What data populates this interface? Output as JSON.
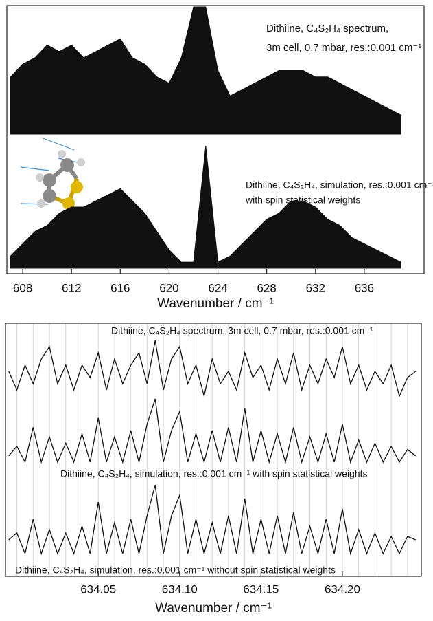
{
  "chart_data": [
    {
      "type": "area",
      "annotations": [
        "Dithiine, C₄S₂H₄ spectrum,",
        "3m cell, 0.7 mbar, res.:0.001 cm⁻¹",
        "Dithiine, C₄S₂H₄, simulation, res.:0.001 cm⁻¹",
        "with spin statistical weights"
      ],
      "xlabel": "Wavenumber / cm⁻¹",
      "x": [
        607,
        608,
        609,
        610,
        611,
        612,
        613,
        614,
        615,
        616,
        617,
        618,
        619,
        620,
        621,
        622,
        623,
        624,
        625,
        626,
        627,
        628,
        629,
        630,
        631,
        632,
        633,
        634,
        635,
        636,
        637,
        638,
        639
      ],
      "series": [
        {
          "color": "#111111",
          "values": [
            0.45,
            0.55,
            0.6,
            0.7,
            0.65,
            0.7,
            0.6,
            0.65,
            0.7,
            0.75,
            0.6,
            0.55,
            0.45,
            0.4,
            0.6,
            1.0,
            1.0,
            0.5,
            0.3,
            0.35,
            0.4,
            0.45,
            0.5,
            0.5,
            0.5,
            0.45,
            0.45,
            0.4,
            0.35,
            0.3,
            0.25,
            0.2,
            0.15
          ]
        },
        {
          "color": "#111111",
          "values": [
            0.1,
            0.2,
            0.3,
            0.35,
            0.45,
            0.5,
            0.5,
            0.55,
            0.6,
            0.65,
            0.55,
            0.45,
            0.3,
            0.15,
            0.05,
            0.05,
            1.0,
            0.05,
            0.1,
            0.2,
            0.3,
            0.4,
            0.45,
            0.55,
            0.55,
            0.5,
            0.4,
            0.35,
            0.25,
            0.2,
            0.15,
            0.1,
            0.05
          ]
        }
      ],
      "xlim": [
        606.7,
        640.9
      ],
      "xticks": [
        608,
        612,
        616,
        620,
        624,
        628,
        632,
        636
      ]
    },
    {
      "type": "line",
      "annotations": [
        "Dithiine, C₄S₂H₄ spectrum, 3m cell, 0.7 mbar, res.:0.001 cm⁻¹",
        "Dithiine, C₄S₂H₄, simulation, res.:0.001 cm⁻¹  with spin statistical weights",
        "Dithiine, C₄S₂H₄, simulation, res.:0.001 cm⁻¹  without spin statistical weights"
      ],
      "xlabel": "Wavenumber / cm⁻¹",
      "x": [
        633.995,
        634,
        634.005,
        634.01,
        634.015,
        634.02,
        634.025,
        634.03,
        634.035,
        634.04,
        634.045,
        634.05,
        634.055,
        634.06,
        634.065,
        634.07,
        634.075,
        634.08,
        634.085,
        634.09,
        634.095,
        634.1,
        634.105,
        634.11,
        634.115,
        634.12,
        634.125,
        634.13,
        634.135,
        634.14,
        634.145,
        634.15,
        634.155,
        634.16,
        634.165,
        634.17,
        634.175,
        634.18,
        634.185,
        634.19,
        634.195,
        634.2,
        634.205,
        634.21,
        634.215,
        634.22,
        634.225,
        634.23,
        634.235,
        634.24,
        634.245
      ],
      "series": [
        {
          "color": "#111111",
          "values": [
            0.5,
            0.2,
            0.6,
            0.3,
            0.7,
            0.9,
            0.3,
            0.6,
            0.2,
            0.6,
            0.4,
            0.8,
            0.2,
            0.7,
            0.3,
            0.6,
            0.8,
            0.3,
            1.0,
            0.2,
            0.7,
            0.9,
            0.3,
            0.6,
            0.1,
            0.7,
            0.3,
            0.5,
            0.2,
            0.8,
            0.4,
            0.6,
            0.2,
            0.7,
            0.3,
            0.8,
            0.2,
            0.6,
            0.3,
            0.7,
            0.4,
            0.9,
            0.3,
            0.6,
            0.2,
            0.5,
            0.3,
            0.6,
            0.1,
            0.4,
            0.5
          ]
        },
        {
          "color": "#111111",
          "values": [
            0.1,
            0.25,
            0,
            0.55,
            0,
            0.4,
            0,
            0.3,
            0,
            0.45,
            0,
            0.7,
            0,
            0.4,
            0,
            0.5,
            0,
            0.6,
            1.0,
            0,
            0.5,
            0.8,
            0,
            0.45,
            0,
            0.5,
            0,
            0.55,
            0,
            0.85,
            0,
            0.5,
            0,
            0.45,
            0,
            0.55,
            0,
            0.4,
            0,
            0.45,
            0,
            0.6,
            0,
            0.35,
            0,
            0.3,
            0,
            0.25,
            0,
            0.2,
            0.1
          ]
        },
        {
          "color": "#111111",
          "values": [
            0.2,
            0.3,
            0,
            0.5,
            0,
            0.35,
            0,
            0.3,
            0,
            0.4,
            0,
            0.75,
            0,
            0.45,
            0,
            0.5,
            0,
            0.55,
            1.0,
            0,
            0.55,
            0.85,
            0,
            0.5,
            0,
            0.45,
            0,
            0.55,
            0,
            0.8,
            0,
            0.5,
            0,
            0.55,
            0,
            0.6,
            0,
            0.4,
            0,
            0.5,
            0,
            0.65,
            0,
            0.35,
            0,
            0.3,
            0,
            0.25,
            0,
            0.25,
            0.2
          ]
        }
      ],
      "xlim": [
        633.993,
        634.2485
      ],
      "xticks": [
        634.05,
        {
          "value": 634.1,
          "label": "634.10"
        },
        634.15,
        {
          "value": 634.2,
          "label": "634.20"
        }
      ],
      "xgrid": [
        634,
        634.01,
        634.02,
        634.03,
        634.04,
        634.05,
        634.06,
        634.07,
        634.08,
        634.09,
        634.1,
        634.11,
        634.12,
        634.13,
        634.14,
        634.15,
        634.16,
        634.17,
        634.18,
        634.19,
        634.2,
        634.21,
        634.22,
        634.23,
        634.24
      ],
      "grid": true
    }
  ]
}
